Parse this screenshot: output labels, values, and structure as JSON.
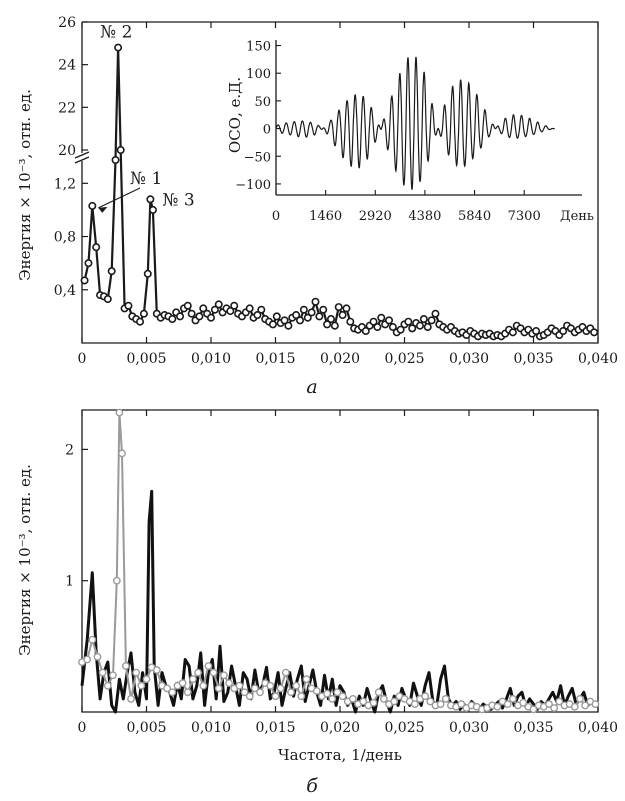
{
  "chart_data": [
    {
      "panel": "a",
      "type": "line",
      "ylabel": "Энергия × 10⁻³, отн. ед.",
      "xlim": [
        0,
        0.04
      ],
      "x_ticks": [
        "0",
        "0,005",
        "0,010",
        "0,015",
        "0,020",
        "0,025",
        "0,030",
        "0,035",
        "0,040"
      ],
      "y_ticks_lower": [
        "0,4",
        "0,8",
        "1,2"
      ],
      "y_ticks_upper": [
        "20",
        "22",
        "24",
        "26"
      ],
      "y_break": [
        1.3,
        20
      ],
      "annotations": [
        {
          "label": "№ 2",
          "x": 0.0028,
          "y": 24.8
        },
        {
          "label": "№ 1",
          "x": 0.0008,
          "y": 1.03
        },
        {
          "label": "№ 3",
          "x": 0.0053,
          "y": 1.08
        }
      ],
      "panel_label": "a",
      "series": [
        {
          "markers": "open-circle",
          "x": [
            0.0002,
            0.0005,
            0.0008,
            0.0011,
            0.0014,
            0.0017,
            0.002,
            0.0023,
            0.0026,
            0.0028,
            0.003,
            0.0033,
            0.0036,
            0.0039,
            0.0042,
            0.0045,
            0.0048,
            0.0051,
            0.0053,
            0.0055,
            0.0058,
            0.0061,
            0.0064,
            0.0067,
            0.007,
            0.0073,
            0.0076,
            0.0079,
            0.0082,
            0.0085,
            0.0088,
            0.0091,
            0.0094,
            0.0097,
            0.01,
            0.0103,
            0.0106,
            0.0109,
            0.0112,
            0.0115,
            0.0118,
            0.0121,
            0.0124,
            0.0127,
            0.013,
            0.0133,
            0.0136,
            0.0139,
            0.0142,
            0.0145,
            0.0148,
            0.0151,
            0.0154,
            0.0157,
            0.016,
            0.0163,
            0.0166,
            0.0169,
            0.0172,
            0.0175,
            0.0178,
            0.0181,
            0.0184,
            0.0187,
            0.019,
            0.0193,
            0.0196,
            0.0199,
            0.0202,
            0.0205,
            0.0208,
            0.0211,
            0.0214,
            0.0217,
            0.022,
            0.0223,
            0.0226,
            0.0229,
            0.0232,
            0.0235,
            0.0238,
            0.0241,
            0.0244,
            0.0247,
            0.025,
            0.0253,
            0.0256,
            0.0259,
            0.0262,
            0.0265,
            0.0268,
            0.0271,
            0.0274,
            0.0277,
            0.028,
            0.0283,
            0.0286,
            0.0289,
            0.0292,
            0.0295,
            0.0298,
            0.0301,
            0.0304,
            0.0307,
            0.031,
            0.0313,
            0.0316,
            0.0319,
            0.0322,
            0.0325,
            0.0328,
            0.0331,
            0.0334,
            0.0337,
            0.034,
            0.0343,
            0.0346,
            0.0349,
            0.0352,
            0.0355,
            0.0358,
            0.0361,
            0.0364,
            0.0367,
            0.037,
            0.0373,
            0.0376,
            0.0379,
            0.0382,
            0.0385,
            0.0388,
            0.0391,
            0.0394,
            0.0397
          ],
          "y": [
            0.47,
            0.6,
            1.03,
            0.72,
            0.36,
            0.35,
            0.33,
            0.54,
            1.55,
            24.8,
            20.0,
            0.26,
            0.28,
            0.2,
            0.18,
            0.16,
            0.22,
            0.52,
            1.08,
            1.0,
            0.22,
            0.19,
            0.21,
            0.2,
            0.18,
            0.23,
            0.2,
            0.26,
            0.28,
            0.22,
            0.17,
            0.2,
            0.26,
            0.22,
            0.19,
            0.25,
            0.29,
            0.23,
            0.26,
            0.24,
            0.28,
            0.22,
            0.2,
            0.23,
            0.26,
            0.19,
            0.21,
            0.25,
            0.18,
            0.16,
            0.14,
            0.2,
            0.15,
            0.17,
            0.13,
            0.19,
            0.21,
            0.17,
            0.25,
            0.19,
            0.23,
            0.31,
            0.2,
            0.25,
            0.14,
            0.18,
            0.13,
            0.27,
            0.21,
            0.26,
            0.16,
            0.11,
            0.1,
            0.12,
            0.09,
            0.13,
            0.16,
            0.12,
            0.19,
            0.14,
            0.17,
            0.12,
            0.08,
            0.1,
            0.14,
            0.16,
            0.11,
            0.15,
            0.13,
            0.18,
            0.12,
            0.17,
            0.22,
            0.14,
            0.12,
            0.1,
            0.12,
            0.09,
            0.07,
            0.08,
            0.06,
            0.09,
            0.07,
            0.05,
            0.07,
            0.06,
            0.07,
            0.05,
            0.06,
            0.05,
            0.07,
            0.1,
            0.08,
            0.13,
            0.11,
            0.08,
            0.1,
            0.07,
            0.09,
            0.05,
            0.06,
            0.08,
            0.11,
            0.09,
            0.06,
            0.09,
            0.13,
            0.11,
            0.08,
            0.1,
            0.12,
            0.09,
            0.11,
            0.08
          ]
        }
      ]
    },
    {
      "panel": "a-inset",
      "type": "line",
      "xlabel_unit": "День",
      "ylabel": "ОСО, е.Д.",
      "x_ticks": [
        "0",
        "1460",
        "2920",
        "4380",
        "5840",
        "7300"
      ],
      "y_ticks": [
        "150",
        "100",
        "50",
        "0",
        "−50",
        "−100"
      ],
      "xlim": [
        0,
        9000
      ],
      "ylim": [
        -120,
        160
      ],
      "envelope": {
        "x": [
          0,
          500,
          1000,
          1460,
          2000,
          2500,
          2920,
          3400,
          3900,
          4380,
          4700,
          5000,
          5400,
          5840,
          6300,
          6800,
          7300,
          7800,
          8200
        ],
        "upper": [
          10,
          12,
          18,
          30,
          48,
          70,
          85,
          100,
          130,
          150,
          140,
          120,
          95,
          75,
          55,
          35,
          22,
          14,
          10
        ],
        "lower": [
          -10,
          -12,
          -22,
          -40,
          -60,
          -80,
          -90,
          -100,
          -110,
          -118,
          -105,
          -90,
          -75,
          -55,
          -40,
          -25,
          -15,
          -10,
          -8
        ]
      }
    },
    {
      "panel": "б",
      "type": "line",
      "xlabel": "Частота, 1/день",
      "ylabel": "Энергия × 10⁻³, отн. ед.",
      "xlim": [
        0,
        0.04
      ],
      "ylim": [
        0,
        2.3
      ],
      "x_ticks": [
        "0",
        "0,005",
        "0,010",
        "0,015",
        "0,020",
        "0,025",
        "0,030",
        "0,035",
        "0,040"
      ],
      "y_ticks": [
        "1",
        "2"
      ],
      "panel_label": "б",
      "series": [
        {
          "color": "#111111",
          "x": [
            0.0,
            0.0004,
            0.0008,
            0.0011,
            0.0014,
            0.0017,
            0.002,
            0.0023,
            0.0026,
            0.0029,
            0.0032,
            0.0035,
            0.0038,
            0.0041,
            0.0044,
            0.0047,
            0.005,
            0.0052,
            0.0054,
            0.0056,
            0.0059,
            0.0062,
            0.0065,
            0.0068,
            0.0071,
            0.0074,
            0.0077,
            0.008,
            0.0083,
            0.0086,
            0.0089,
            0.0092,
            0.0095,
            0.0098,
            0.0101,
            0.0104,
            0.0107,
            0.011,
            0.0113,
            0.0116,
            0.0119,
            0.0122,
            0.0125,
            0.0128,
            0.0131,
            0.0134,
            0.0137,
            0.014,
            0.0143,
            0.0146,
            0.0149,
            0.0152,
            0.0155,
            0.0158,
            0.0161,
            0.0164,
            0.0167,
            0.017,
            0.0173,
            0.0176,
            0.0179,
            0.0182,
            0.0185,
            0.0188,
            0.0191,
            0.0194,
            0.0197,
            0.02,
            0.0203,
            0.0206,
            0.0209,
            0.0212,
            0.0215,
            0.0218,
            0.0221,
            0.0224,
            0.0227,
            0.023,
            0.0233,
            0.0236,
            0.0239,
            0.0242,
            0.0245,
            0.0248,
            0.0251,
            0.0254,
            0.0257,
            0.026,
            0.0263,
            0.0266,
            0.0269,
            0.0272,
            0.0275,
            0.0278,
            0.0281,
            0.0284,
            0.0287,
            0.029,
            0.0293,
            0.0296,
            0.0299,
            0.0302,
            0.0305,
            0.0308,
            0.0311,
            0.0314,
            0.0317,
            0.032,
            0.0323,
            0.0326,
            0.0329,
            0.0332,
            0.0335,
            0.0338,
            0.0341,
            0.0344,
            0.0347,
            0.035,
            0.0353,
            0.0356,
            0.0359,
            0.0362,
            0.0365,
            0.0368,
            0.0371,
            0.0374,
            0.0377,
            0.038,
            0.0383,
            0.0386,
            0.0389,
            0.0392,
            0.0395,
            0.0398
          ],
          "y": [
            0.2,
            0.55,
            1.06,
            0.45,
            0.1,
            0.3,
            0.38,
            0.05,
            0.0,
            0.25,
            0.1,
            0.3,
            0.45,
            0.15,
            0.05,
            0.3,
            0.1,
            1.45,
            1.68,
            0.35,
            0.05,
            0.3,
            0.2,
            0.15,
            0.05,
            0.22,
            0.1,
            0.4,
            0.35,
            0.1,
            0.2,
            0.45,
            0.05,
            0.3,
            0.4,
            0.1,
            0.5,
            0.08,
            0.15,
            0.35,
            0.2,
            0.05,
            0.3,
            0.25,
            0.1,
            0.32,
            0.15,
            0.2,
            0.34,
            0.1,
            0.15,
            0.3,
            0.05,
            0.18,
            0.3,
            0.12,
            0.25,
            0.35,
            0.08,
            0.2,
            0.32,
            0.15,
            0.05,
            0.28,
            0.1,
            0.25,
            0.05,
            0.2,
            0.15,
            0.05,
            0.1,
            0.0,
            0.12,
            0.05,
            0.18,
            0.08,
            0.0,
            0.15,
            0.2,
            0.08,
            0.0,
            0.12,
            0.05,
            0.18,
            0.1,
            0.05,
            0.22,
            0.12,
            0.05,
            0.2,
            0.3,
            0.08,
            0.05,
            0.25,
            0.35,
            0.1,
            0.05,
            0.08,
            0.02,
            0.06,
            0.03,
            0.08,
            0.05,
            0.02,
            0.06,
            0.04,
            0.02,
            0.05,
            0.08,
            0.03,
            0.1,
            0.18,
            0.05,
            0.12,
            0.15,
            0.04,
            0.1,
            0.06,
            0.02,
            0.08,
            0.05,
            0.1,
            0.15,
            0.08,
            0.2,
            0.05,
            0.12,
            0.18,
            0.06,
            0.1,
            0.15,
            0.05,
            0.08,
            0.04
          ]
        },
        {
          "color": "#9a9a9a",
          "markers": "open-circle",
          "x": [
            0.0,
            0.0004,
            0.0008,
            0.0012,
            0.0016,
            0.002,
            0.0024,
            0.0027,
            0.0029,
            0.0031,
            0.0034,
            0.0038,
            0.0042,
            0.0046,
            0.005,
            0.0054,
            0.0058,
            0.0062,
            0.0066,
            0.007,
            0.0074,
            0.0078,
            0.0082,
            0.0086,
            0.009,
            0.0094,
            0.0098,
            0.0102,
            0.0106,
            0.011,
            0.0114,
            0.0118,
            0.0122,
            0.0126,
            0.013,
            0.0134,
            0.0138,
            0.0142,
            0.0146,
            0.015,
            0.0154,
            0.0158,
            0.0162,
            0.0166,
            0.017,
            0.0174,
            0.0178,
            0.0182,
            0.0186,
            0.019,
            0.0194,
            0.0198,
            0.0202,
            0.0206,
            0.021,
            0.0214,
            0.0218,
            0.0222,
            0.0226,
            0.023,
            0.0234,
            0.0238,
            0.0242,
            0.0246,
            0.025,
            0.0254,
            0.0258,
            0.0262,
            0.0266,
            0.027,
            0.0274,
            0.0278,
            0.0282,
            0.0286,
            0.029,
            0.0294,
            0.0298,
            0.0302,
            0.0306,
            0.031,
            0.0314,
            0.0318,
            0.0322,
            0.0326,
            0.033,
            0.0334,
            0.0338,
            0.0342,
            0.0346,
            0.035,
            0.0354,
            0.0358,
            0.0362,
            0.0366,
            0.037,
            0.0374,
            0.0378,
            0.0382,
            0.0386,
            0.039,
            0.0394,
            0.0398
          ],
          "y": [
            0.38,
            0.4,
            0.55,
            0.42,
            0.3,
            0.2,
            0.28,
            1.0,
            2.28,
            1.97,
            0.35,
            0.1,
            0.3,
            0.2,
            0.25,
            0.34,
            0.32,
            0.2,
            0.18,
            0.15,
            0.2,
            0.22,
            0.15,
            0.25,
            0.3,
            0.2,
            0.35,
            0.3,
            0.18,
            0.28,
            0.22,
            0.18,
            0.2,
            0.15,
            0.12,
            0.18,
            0.15,
            0.22,
            0.2,
            0.12,
            0.18,
            0.3,
            0.15,
            0.2,
            0.12,
            0.25,
            0.18,
            0.16,
            0.12,
            0.14,
            0.1,
            0.15,
            0.12,
            0.08,
            0.1,
            0.06,
            0.08,
            0.05,
            0.07,
            0.15,
            0.1,
            0.06,
            0.08,
            0.12,
            0.1,
            0.08,
            0.06,
            0.1,
            0.12,
            0.08,
            0.05,
            0.06,
            0.1,
            0.05,
            0.04,
            0.06,
            0.03,
            0.05,
            0.04,
            0.02,
            0.03,
            0.05,
            0.04,
            0.08,
            0.06,
            0.1,
            0.05,
            0.07,
            0.04,
            0.02,
            0.05,
            0.04,
            0.06,
            0.03,
            0.08,
            0.05,
            0.06,
            0.04,
            0.1,
            0.05,
            0.08,
            0.06
          ]
        }
      ]
    }
  ]
}
